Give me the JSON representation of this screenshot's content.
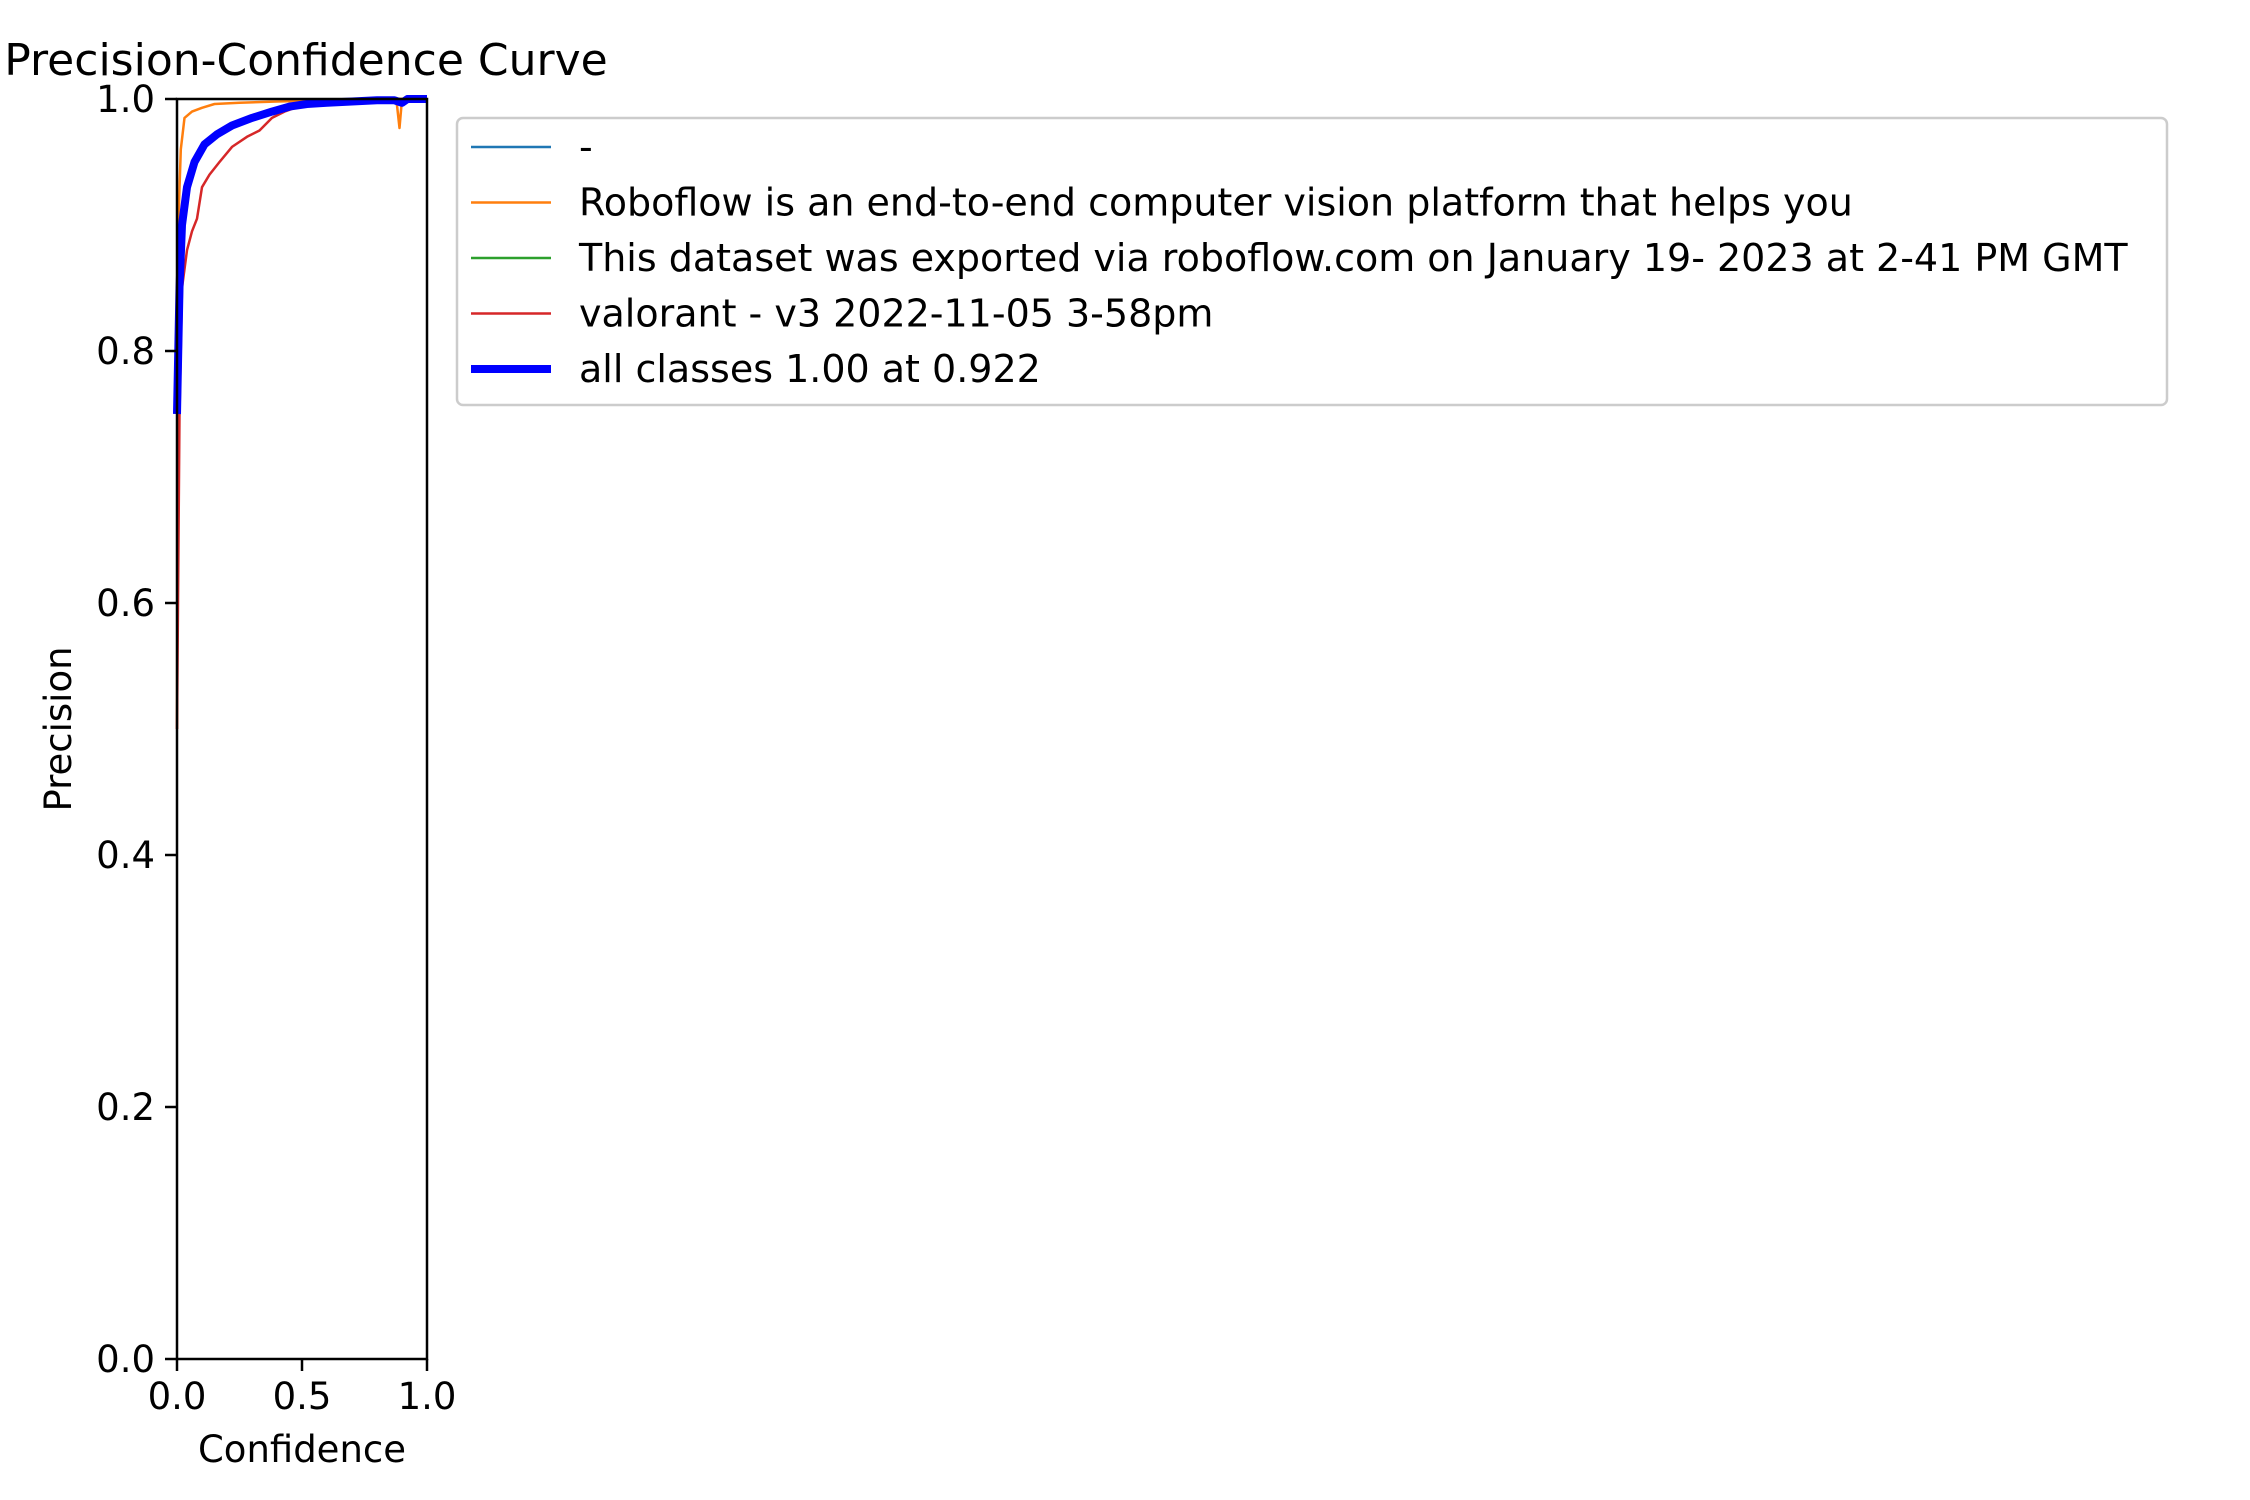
{
  "chart_data": {
    "type": "line",
    "title": "Precision-Confidence Curve",
    "xlabel": "Confidence",
    "ylabel": "Precision",
    "xlim": [
      0.0,
      1.0
    ],
    "ylim": [
      0.0,
      1.0
    ],
    "xticks": [
      "0.0",
      "0.5",
      "1.0"
    ],
    "yticks": [
      "0.0",
      "0.2",
      "0.4",
      "0.6",
      "0.8",
      "1.0"
    ],
    "grid": false,
    "legend_position": "outside-right-top",
    "series": [
      {
        "name": "-",
        "color": "#1f77b4",
        "width": "thin",
        "points": []
      },
      {
        "name": "Roboflow is an end-to-end computer vision platform that helps you",
        "color": "#ff7f0e",
        "width": "thin",
        "points": [
          [
            0.0,
            0.5
          ],
          [
            0.005,
            0.9
          ],
          [
            0.015,
            0.96
          ],
          [
            0.03,
            0.985
          ],
          [
            0.06,
            0.99
          ],
          [
            0.1,
            0.993
          ],
          [
            0.15,
            0.996
          ],
          [
            0.25,
            0.997
          ],
          [
            0.4,
            0.998
          ],
          [
            0.6,
            0.999
          ],
          [
            0.8,
            1.0
          ],
          [
            0.87,
            1.0
          ],
          [
            0.88,
            0.995
          ],
          [
            0.89,
            0.977
          ],
          [
            0.9,
            1.0
          ],
          [
            1.0,
            1.0
          ]
        ]
      },
      {
        "name": "This dataset was exported via roboflow.com on January 19- 2023 at 2-41 PM GMT",
        "color": "#2ca02c",
        "width": "thin",
        "points": []
      },
      {
        "name": "valorant - v3 2022-11-05 3-58pm",
        "color": "#d62728",
        "width": "thin",
        "points": [
          [
            0.0,
            0.5
          ],
          [
            0.01,
            0.75
          ],
          [
            0.02,
            0.85
          ],
          [
            0.04,
            0.88
          ],
          [
            0.06,
            0.895
          ],
          [
            0.08,
            0.905
          ],
          [
            0.1,
            0.93
          ],
          [
            0.13,
            0.94
          ],
          [
            0.17,
            0.95
          ],
          [
            0.22,
            0.962
          ],
          [
            0.28,
            0.97
          ],
          [
            0.33,
            0.975
          ],
          [
            0.38,
            0.985
          ],
          [
            0.43,
            0.99
          ],
          [
            0.5,
            0.995
          ],
          [
            0.6,
            0.997
          ],
          [
            0.75,
            0.999
          ],
          [
            0.85,
            1.0
          ],
          [
            1.0,
            1.0
          ]
        ]
      },
      {
        "name": "all classes 1.00 at 0.922",
        "color": "#0000ff",
        "width": "thick",
        "points": [
          [
            0.0,
            0.75
          ],
          [
            0.01,
            0.85
          ],
          [
            0.02,
            0.9
          ],
          [
            0.04,
            0.93
          ],
          [
            0.07,
            0.95
          ],
          [
            0.11,
            0.964
          ],
          [
            0.16,
            0.972
          ],
          [
            0.22,
            0.979
          ],
          [
            0.3,
            0.985
          ],
          [
            0.38,
            0.99
          ],
          [
            0.45,
            0.994
          ],
          [
            0.52,
            0.996
          ],
          [
            0.6,
            0.997
          ],
          [
            0.7,
            0.998
          ],
          [
            0.8,
            0.999
          ],
          [
            0.87,
            0.999
          ],
          [
            0.9,
            0.997
          ],
          [
            0.922,
            1.0
          ],
          [
            1.0,
            1.0
          ]
        ]
      }
    ]
  }
}
